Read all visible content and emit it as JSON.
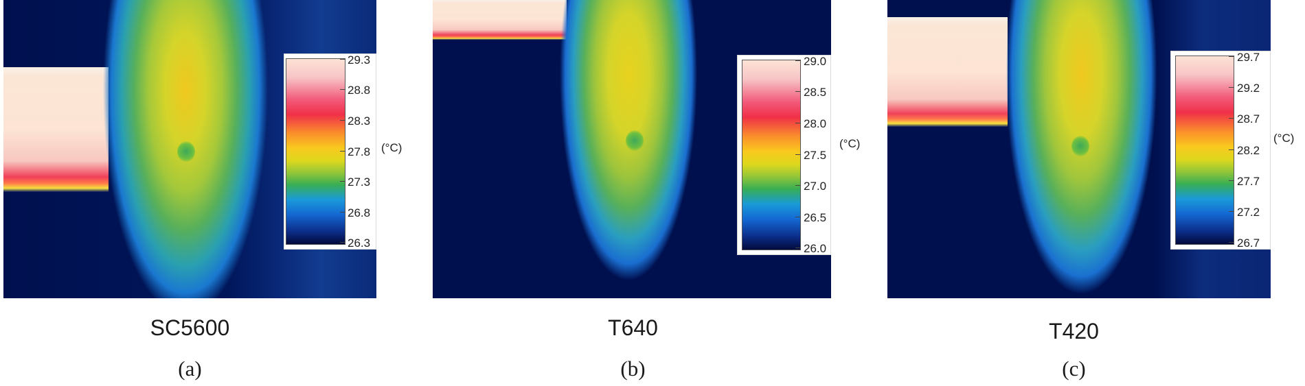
{
  "panels": [
    {
      "camera": "SC5600",
      "sub": "(a)",
      "unit": "(°C)",
      "ticks": [
        "29.3",
        "28.8",
        "28.3",
        "27.8",
        "27.3",
        "26.8",
        "26.3"
      ]
    },
    {
      "camera": "T640",
      "sub": "(b)",
      "unit": "(°C)",
      "ticks": [
        "29.0",
        "28.5",
        "28.0",
        "27.5",
        "27.0",
        "26.5",
        "26.0"
      ]
    },
    {
      "camera": "T420",
      "sub": "(c)",
      "unit": "(°C)",
      "ticks": [
        "29.7",
        "29.2",
        "28.7",
        "28.2",
        "27.7",
        "27.2",
        "26.7"
      ]
    }
  ]
}
